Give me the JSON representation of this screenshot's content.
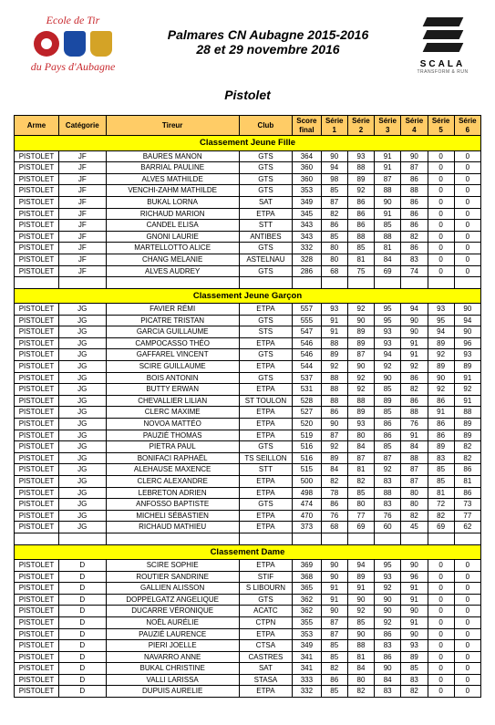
{
  "logo_left": {
    "line1": "Ecole de Tir",
    "line2": "du Pays d'Aubagne",
    "text_color": "#c8282d"
  },
  "title_line1": "Palmares CN Aubagne 2015-2016",
  "title_line2": "28 et 29 novembre 2016",
  "subtitle": "Pistolet",
  "logo_right": {
    "brand": "SCALA",
    "tagline": "TRANSFORM & RUN"
  },
  "table": {
    "section_bg": "#ffff00",
    "header_bg": "#ffcc66",
    "columns": [
      "Arme",
      "Catégorie",
      "Tireur",
      "Club",
      "Score final",
      "Série 1",
      "Série 2",
      "Série 3",
      "Série 4",
      "Série 5",
      "Série 6"
    ],
    "sections": [
      {
        "title": "Classement Jeune Fille",
        "rows": [
          [
            "PISTOLET",
            "JF",
            "BAURES MANON",
            "GTS",
            "364",
            "90",
            "93",
            "91",
            "90",
            "0",
            "0"
          ],
          [
            "PISTOLET",
            "JF",
            "BARRIAL PAULINE",
            "GTS",
            "360",
            "94",
            "88",
            "91",
            "87",
            "0",
            "0"
          ],
          [
            "PISTOLET",
            "JF",
            "ALVES MATHILDE",
            "GTS",
            "360",
            "98",
            "89",
            "87",
            "86",
            "0",
            "0"
          ],
          [
            "PISTOLET",
            "JF",
            "VENCHI-ZAHM MATHILDE",
            "GTS",
            "353",
            "85",
            "92",
            "88",
            "88",
            "0",
            "0"
          ],
          [
            "PISTOLET",
            "JF",
            "BUKAL LORNA",
            "SAT",
            "349",
            "87",
            "86",
            "90",
            "86",
            "0",
            "0"
          ],
          [
            "PISTOLET",
            "JF",
            "RICHAUD MARION",
            "ETPA",
            "345",
            "82",
            "86",
            "91",
            "86",
            "0",
            "0"
          ],
          [
            "PISTOLET",
            "JF",
            "CANDEL ELISA",
            "STT",
            "343",
            "86",
            "86",
            "85",
            "86",
            "0",
            "0"
          ],
          [
            "PISTOLET",
            "JF",
            "GNONI LAURIE",
            "ANTIBES",
            "343",
            "85",
            "88",
            "88",
            "82",
            "0",
            "0"
          ],
          [
            "PISTOLET",
            "JF",
            "MARTELLOTTO ALICE",
            "GTS",
            "332",
            "80",
            "85",
            "81",
            "86",
            "0",
            "0"
          ],
          [
            "PISTOLET",
            "JF",
            "CHANG MELANIE",
            "ASTELNAU",
            "328",
            "80",
            "81",
            "84",
            "83",
            "0",
            "0"
          ],
          [
            "PISTOLET",
            "JF",
            "ALVES AUDREY",
            "GTS",
            "286",
            "68",
            "75",
            "69",
            "74",
            "0",
            "0"
          ]
        ]
      },
      {
        "title": "Classement Jeune Garçon",
        "rows": [
          [
            "PISTOLET",
            "JG",
            "FAVIER RÉMI",
            "ETPA",
            "557",
            "93",
            "92",
            "95",
            "94",
            "93",
            "90"
          ],
          [
            "PISTOLET",
            "JG",
            "PICATRE TRISTAN",
            "GTS",
            "555",
            "91",
            "90",
            "95",
            "90",
            "95",
            "94"
          ],
          [
            "PISTOLET",
            "JG",
            "GARCIA GUILLAUME",
            "STS",
            "547",
            "91",
            "89",
            "93",
            "90",
            "94",
            "90"
          ],
          [
            "PISTOLET",
            "JG",
            "CAMPOCASSO THÉO",
            "ETPA",
            "546",
            "88",
            "89",
            "93",
            "91",
            "89",
            "96"
          ],
          [
            "PISTOLET",
            "JG",
            "GAFFAREL VINCENT",
            "GTS",
            "546",
            "89",
            "87",
            "94",
            "91",
            "92",
            "93"
          ],
          [
            "PISTOLET",
            "JG",
            "SCIRE GUILLAUME",
            "ETPA",
            "544",
            "92",
            "90",
            "92",
            "92",
            "89",
            "89"
          ],
          [
            "PISTOLET",
            "JG",
            "BOIS ANTONIN",
            "GTS",
            "537",
            "88",
            "92",
            "90",
            "86",
            "90",
            "91"
          ],
          [
            "PISTOLET",
            "JG",
            "BUTTY ERWAN",
            "ETPA",
            "531",
            "88",
            "92",
            "85",
            "82",
            "92",
            "92"
          ],
          [
            "PISTOLET",
            "JG",
            "CHEVALLIER LILIAN",
            "ST TOULON",
            "528",
            "88",
            "88",
            "89",
            "86",
            "86",
            "91"
          ],
          [
            "PISTOLET",
            "JG",
            "CLERC MAXIME",
            "ETPA",
            "527",
            "86",
            "89",
            "85",
            "88",
            "91",
            "88"
          ],
          [
            "PISTOLET",
            "JG",
            "NOVOA MATTÉO",
            "ETPA",
            "520",
            "90",
            "93",
            "86",
            "76",
            "86",
            "89"
          ],
          [
            "PISTOLET",
            "JG",
            "PAUZIÉ THOMAS",
            "ETPA",
            "519",
            "87",
            "80",
            "86",
            "91",
            "86",
            "89"
          ],
          [
            "PISTOLET",
            "JG",
            "PIETRA PAUL",
            "GTS",
            "516",
            "92",
            "84",
            "85",
            "84",
            "89",
            "82"
          ],
          [
            "PISTOLET",
            "JG",
            "BONIFACI RAPHAËL",
            "TS SEILLON",
            "516",
            "89",
            "87",
            "87",
            "88",
            "83",
            "82"
          ],
          [
            "PISTOLET",
            "JG",
            "ALEHAUSE MAXENCE",
            "STT",
            "515",
            "84",
            "81",
            "92",
            "87",
            "85",
            "86"
          ],
          [
            "PISTOLET",
            "JG",
            "CLERC ALEXANDRE",
            "ETPA",
            "500",
            "82",
            "82",
            "83",
            "87",
            "85",
            "81"
          ],
          [
            "PISTOLET",
            "JG",
            "LEBRETON ADRIEN",
            "ETPA",
            "498",
            "78",
            "85",
            "88",
            "80",
            "81",
            "86"
          ],
          [
            "PISTOLET",
            "JG",
            "ANFOSSO  BAPTISTE",
            "GTS",
            "474",
            "86",
            "80",
            "83",
            "80",
            "72",
            "73"
          ],
          [
            "PISTOLET",
            "JG",
            "MICHELI SÉBASTIEN",
            "ETPA",
            "470",
            "76",
            "77",
            "76",
            "82",
            "82",
            "77"
          ],
          [
            "PISTOLET",
            "JG",
            "RICHAUD MATHIEU",
            "ETPA",
            "373",
            "68",
            "69",
            "60",
            "45",
            "69",
            "62"
          ]
        ]
      },
      {
        "title": "Classement Dame",
        "rows": [
          [
            "PISTOLET",
            "D",
            "SCIRE SOPHIE",
            "ETPA",
            "369",
            "90",
            "94",
            "95",
            "90",
            "0",
            "0"
          ],
          [
            "PISTOLET",
            "D",
            "ROUTIER SANDRINE",
            "STIF",
            "368",
            "90",
            "89",
            "93",
            "96",
            "0",
            "0"
          ],
          [
            "PISTOLET",
            "D",
            "GALLIEN ALISSON",
            "S LIBOURN",
            "365",
            "91",
            "91",
            "92",
            "91",
            "0",
            "0"
          ],
          [
            "PISTOLET",
            "D",
            "DOPPELGATZ ANGELIQUE",
            "GTS",
            "362",
            "91",
            "90",
            "90",
            "91",
            "0",
            "0"
          ],
          [
            "PISTOLET",
            "D",
            "DUCARRE VÉRONIQUE",
            "ACATC",
            "362",
            "90",
            "92",
            "90",
            "90",
            "0",
            "0"
          ],
          [
            "PISTOLET",
            "D",
            "NOËL AURÉLIE",
            "CTPN",
            "355",
            "87",
            "85",
            "92",
            "91",
            "0",
            "0"
          ],
          [
            "PISTOLET",
            "D",
            "PAUZIÉ LAURENCE",
            "ETPA",
            "353",
            "87",
            "90",
            "86",
            "90",
            "0",
            "0"
          ],
          [
            "PISTOLET",
            "D",
            "PIERI JOELLE",
            "CTSA",
            "349",
            "85",
            "88",
            "83",
            "93",
            "0",
            "0"
          ],
          [
            "PISTOLET",
            "D",
            "NAVARRO ANNE",
            "CASTRES",
            "341",
            "85",
            "81",
            "86",
            "89",
            "0",
            "0"
          ],
          [
            "PISTOLET",
            "D",
            "BUKAL CHRISTINE",
            "SAT",
            "341",
            "82",
            "84",
            "90",
            "85",
            "0",
            "0"
          ],
          [
            "PISTOLET",
            "D",
            "VALLI LARISSA",
            "STASA",
            "333",
            "86",
            "80",
            "84",
            "83",
            "0",
            "0"
          ],
          [
            "PISTOLET",
            "D",
            "DUPUIS AURELIE",
            "ETPA",
            "332",
            "85",
            "82",
            "83",
            "82",
            "0",
            "0"
          ]
        ]
      }
    ]
  }
}
